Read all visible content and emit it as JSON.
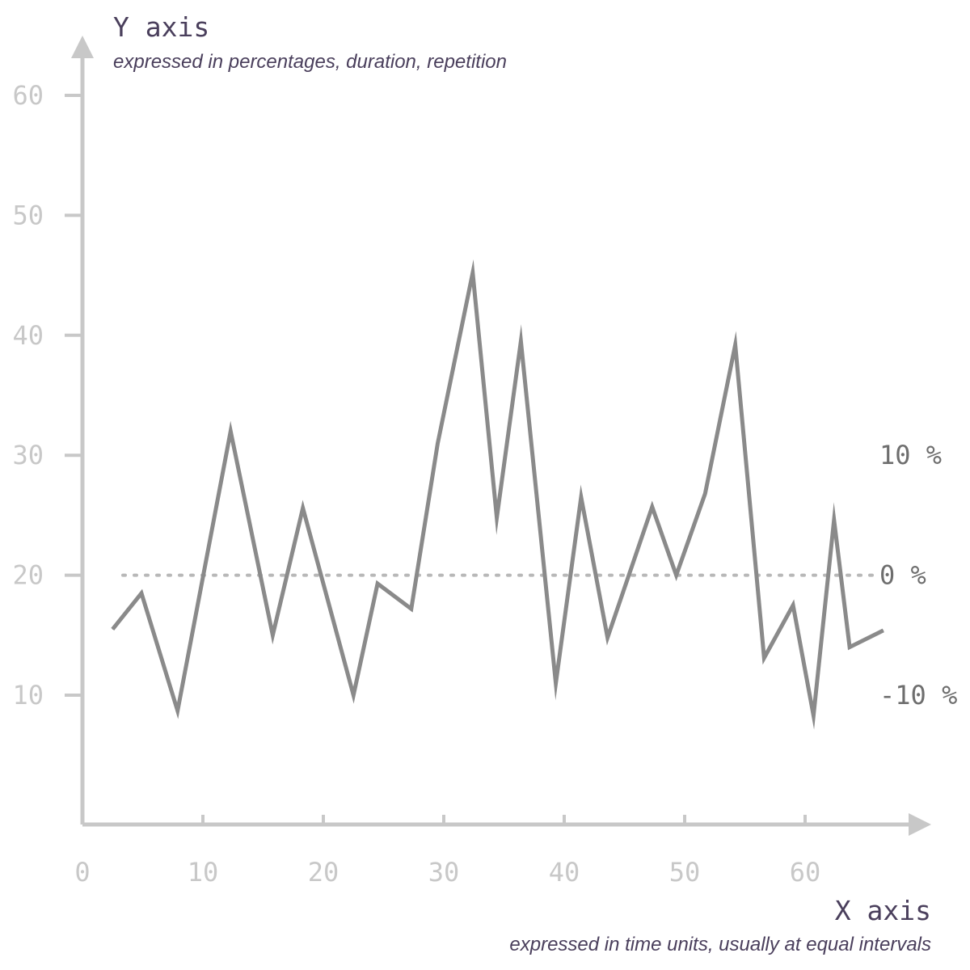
{
  "chart_data": {
    "type": "line",
    "ylabel": "Y axis",
    "ylabel_sub": "expressed in percentages, duration, repetition",
    "xlabel": "X axis",
    "xlabel_sub": "expressed in time units, usually at equal intervals",
    "xlim": [
      0,
      70
    ],
    "ylim": [
      -2,
      64
    ],
    "x_ticks": [
      0,
      10,
      20,
      30,
      40,
      50,
      60
    ],
    "x_tick_labels": [
      "0",
      "10",
      "20",
      "30",
      "40",
      "50",
      "60"
    ],
    "y_ticks": [
      10,
      20,
      30,
      40,
      50,
      60
    ],
    "y_tick_labels": [
      "10",
      "20",
      "30",
      "40",
      "50",
      "60"
    ],
    "reference_line": {
      "y": 20,
      "style": "dotted"
    },
    "right_labels": [
      {
        "y": 30,
        "text": "10 %"
      },
      {
        "y": 20,
        "text": "0 %"
      },
      {
        "y": 10,
        "text": "-10 %"
      }
    ],
    "series": [
      {
        "x": [
          2.5,
          4.9,
          7.9,
          12.3,
          15.8,
          18.3,
          22.5,
          24.5,
          27.3,
          29.5,
          32.4,
          34.4,
          36.4,
          39.3,
          41.4,
          43.6,
          47.3,
          49.3,
          51.7,
          54.2,
          56.6,
          59.0,
          60.7,
          62.4,
          63.7,
          66.5
        ],
        "values": [
          15.5,
          18.5,
          8.7,
          32.0,
          15.0,
          25.6,
          10.0,
          19.3,
          17.2,
          31.0,
          45.2,
          24.8,
          39.5,
          11.0,
          26.5,
          14.8,
          25.7,
          20.0,
          26.8,
          39.2,
          13.1,
          17.5,
          8.3,
          24.6,
          14.0,
          15.4
        ],
        "color": "#8a8a8a"
      }
    ],
    "colors": {
      "axis": "#c8c8c8",
      "line": "#8a8a8a",
      "title": "#4a3f5c",
      "ref_label": "#6e6e6e"
    },
    "grid": false
  }
}
